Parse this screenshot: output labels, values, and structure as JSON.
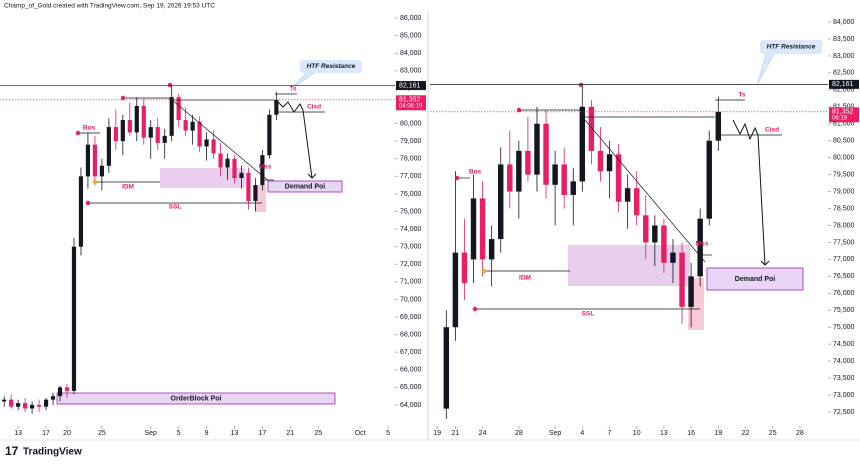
{
  "header": "Champ_of_Gold created with TradingView.com, Sep 19, 2026 19:53 UTC",
  "footer_brand": "TradingView",
  "chart_data": [
    {
      "type": "candlestick",
      "up_color": "#131722",
      "down_color": "#e91e63",
      "ylim": [
        62860,
        86230
      ],
      "yticks": [
        {
          "value": 64000,
          "label": "64,000"
        },
        {
          "value": 65000,
          "label": "65,000"
        },
        {
          "value": 66000,
          "label": "66,000"
        },
        {
          "value": 67000,
          "label": "67,000"
        },
        {
          "value": 68000,
          "label": "68,000"
        },
        {
          "value": 69000,
          "label": "69,000"
        },
        {
          "value": 70000,
          "label": "70,000"
        },
        {
          "value": 71000,
          "label": "71,000"
        },
        {
          "value": 72000,
          "label": "72,000"
        },
        {
          "value": 73000,
          "label": "73,000"
        },
        {
          "value": 74000,
          "label": "74,000"
        },
        {
          "value": 75000,
          "label": "75,000"
        },
        {
          "value": 76000,
          "label": "76,000"
        },
        {
          "value": 77000,
          "label": "77,000"
        },
        {
          "value": 78000,
          "label": "78,000"
        },
        {
          "value": 79000,
          "label": "79,000"
        },
        {
          "value": 80000,
          "label": "80,000"
        },
        {
          "value": 81000,
          "label": "81,000"
        },
        {
          "value": 82000,
          "label": "82,000"
        },
        {
          "value": 83000,
          "label": "83,000"
        },
        {
          "value": 84000,
          "label": "84,000"
        },
        {
          "value": 85000,
          "label": "85,000"
        },
        {
          "value": 86000,
          "label": "86,000"
        }
      ],
      "xlim": [
        -0.6,
        56
      ],
      "xticks": [
        {
          "value": 2,
          "label": "13"
        },
        {
          "value": 6,
          "label": "17"
        },
        {
          "value": 9,
          "label": "20"
        },
        {
          "value": 14,
          "label": "25"
        },
        {
          "value": 21,
          "label": "Sep"
        },
        {
          "value": 25,
          "label": "5"
        },
        {
          "value": 29,
          "label": "9"
        },
        {
          "value": 33,
          "label": "13"
        },
        {
          "value": 37,
          "label": "17"
        },
        {
          "value": 41,
          "label": "21"
        },
        {
          "value": 45,
          "label": "25"
        },
        {
          "value": 51,
          "label": "Oct"
        },
        {
          "value": 55,
          "label": "5"
        }
      ],
      "open": [
        64200,
        64300,
        63900,
        64100,
        63800,
        64000,
        63900,
        64300,
        64500,
        65000,
        64800,
        73000,
        77000,
        78800,
        77000,
        77600,
        79800,
        79000,
        80200,
        79500,
        81000,
        79200,
        79800,
        78900,
        79300,
        81500,
        80200,
        79600,
        80100,
        78700,
        79100,
        78300,
        77500,
        78000,
        76900,
        77200,
        75600,
        76500,
        78200,
        80500
      ],
      "high": [
        64500,
        64600,
        64300,
        64400,
        64200,
        64300,
        64400,
        64700,
        65100,
        65200,
        73500,
        77500,
        79500,
        79300,
        78000,
        80300,
        80800,
        80500,
        81200,
        81500,
        81400,
        80200,
        80300,
        79700,
        82200,
        81700,
        80900,
        80500,
        80400,
        79500,
        79600,
        78900,
        78300,
        78200,
        77600,
        77500,
        76900,
        78500,
        80800,
        81800
      ],
      "low": [
        63900,
        63800,
        63700,
        63600,
        63500,
        63600,
        63700,
        64000,
        64200,
        64400,
        64600,
        72500,
        76300,
        76500,
        76200,
        77200,
        78500,
        78200,
        79300,
        79000,
        78800,
        78000,
        78500,
        78000,
        79000,
        79800,
        79300,
        78800,
        78400,
        77900,
        78000,
        77000,
        76800,
        76600,
        76300,
        75100,
        75000,
        76200,
        78000,
        80200
      ],
      "close": [
        64300,
        63900,
        64100,
        63800,
        64000,
        63900,
        64300,
        64500,
        65000,
        64800,
        73000,
        77000,
        78800,
        77000,
        77600,
        79800,
        79000,
        80200,
        79500,
        81000,
        79200,
        79800,
        78900,
        79300,
        81500,
        80200,
        79600,
        80100,
        78700,
        79100,
        78300,
        77500,
        78000,
        76900,
        77200,
        75600,
        76500,
        78200,
        80500,
        81352
      ],
      "price_lines": [
        {
          "value": 82161,
          "label": "82,161",
          "color": "#131722"
        },
        {
          "value": 81352,
          "label": "81,352",
          "color": "#e91e63",
          "countdown": "04:06:19"
        }
      ],
      "labels": {
        "bos": "Bos",
        "idm": "IDM",
        "ssl": "SSL",
        "mss": "Mss",
        "ts": "Ts",
        "cisd": "Cisd",
        "demand": "Demand Poi",
        "orderblock": "OrderBlock Poi",
        "htf": "HTF Resistance"
      }
    },
    {
      "type": "candlestick",
      "up_color": "#131722",
      "down_color": "#e91e63",
      "ylim": [
        72117,
        84236
      ],
      "yticks": [
        {
          "value": 72500,
          "label": "72,500"
        },
        {
          "value": 73000,
          "label": "73,000"
        },
        {
          "value": 73500,
          "label": "73,500"
        },
        {
          "value": 74000,
          "label": "74,000"
        },
        {
          "value": 74500,
          "label": "74,500"
        },
        {
          "value": 75000,
          "label": "75,000"
        },
        {
          "value": 75500,
          "label": "75,500"
        },
        {
          "value": 76000,
          "label": "76,000"
        },
        {
          "value": 76500,
          "label": "76,500"
        },
        {
          "value": 77000,
          "label": "77,000"
        },
        {
          "value": 77500,
          "label": "77,500"
        },
        {
          "value": 78000,
          "label": "78,000"
        },
        {
          "value": 78500,
          "label": "78,500"
        },
        {
          "value": 79000,
          "label": "79,000"
        },
        {
          "value": 79500,
          "label": "79,500"
        },
        {
          "value": 80000,
          "label": "80,000"
        },
        {
          "value": 80500,
          "label": "80,500"
        },
        {
          "value": 81000,
          "label": "81,000"
        },
        {
          "value": 81500,
          "label": "81,500"
        },
        {
          "value": 82000,
          "label": "82,000"
        },
        {
          "value": 82500,
          "label": "82,500"
        },
        {
          "value": 83000,
          "label": "83,000"
        },
        {
          "value": 83500,
          "label": "83,500"
        },
        {
          "value": 84000,
          "label": "84,000"
        }
      ],
      "xlim": [
        -1.8,
        42.1
      ],
      "xticks": [
        {
          "value": -1,
          "label": "19"
        },
        {
          "value": 1,
          "label": "21"
        },
        {
          "value": 4,
          "label": "24"
        },
        {
          "value": 8,
          "label": "28"
        },
        {
          "value": 12,
          "label": "Sep"
        },
        {
          "value": 15,
          "label": "4"
        },
        {
          "value": 18,
          "label": "7"
        },
        {
          "value": 21,
          "label": "10"
        },
        {
          "value": 24,
          "label": "13"
        },
        {
          "value": 27,
          "label": "16"
        },
        {
          "value": 30,
          "label": "19"
        },
        {
          "value": 33,
          "label": "22"
        },
        {
          "value": 36,
          "label": "25"
        },
        {
          "value": 39,
          "label": "28"
        }
      ],
      "open": [
        72600,
        75000,
        77200,
        77000,
        78800,
        77000,
        77600,
        79800,
        79000,
        80200,
        79500,
        81000,
        79200,
        79800,
        78900,
        79300,
        81500,
        80200,
        79600,
        80100,
        78700,
        79100,
        78300,
        77500,
        78000,
        76900,
        77200,
        75600,
        76500,
        78200,
        80500
      ],
      "high": [
        75500,
        79600,
        78200,
        79500,
        79300,
        78000,
        80300,
        80800,
        80500,
        81200,
        81500,
        81400,
        80200,
        80300,
        79700,
        82200,
        81700,
        80900,
        80500,
        80400,
        79500,
        79600,
        78900,
        78300,
        78200,
        77600,
        77500,
        76900,
        78500,
        80800,
        81800
      ],
      "low": [
        72300,
        74600,
        75800,
        76300,
        76500,
        76200,
        77200,
        78500,
        78200,
        79300,
        79000,
        78800,
        78000,
        78500,
        78000,
        79000,
        79800,
        79300,
        78800,
        78400,
        77900,
        78000,
        77000,
        76800,
        76600,
        76300,
        75100,
        75000,
        76200,
        78000,
        80200
      ],
      "close": [
        75000,
        77200,
        76300,
        78800,
        77000,
        77600,
        79800,
        79000,
        80200,
        79500,
        81000,
        79200,
        79800,
        78900,
        79300,
        81500,
        80200,
        79600,
        80100,
        78700,
        79100,
        78300,
        77500,
        78000,
        76900,
        77200,
        75600,
        76500,
        78200,
        80500,
        81352
      ],
      "price_lines": [
        {
          "value": 82161,
          "label": "82,161",
          "color": "#131722"
        },
        {
          "value": 81352,
          "label": "81,352",
          "color": "#e91e63",
          "countdown": "06:19"
        }
      ],
      "labels": {
        "bos": "Bos",
        "idm": "IDM",
        "ssl": "SSL",
        "mss": "Mss",
        "ts": "Ts",
        "cisd": "Cisd",
        "demand": "Demand Poi",
        "htf": "HTF Resistance"
      }
    }
  ]
}
